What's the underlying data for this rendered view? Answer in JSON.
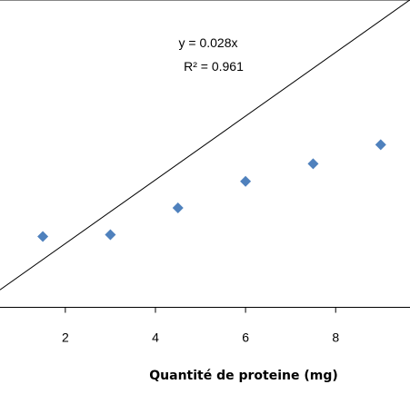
{
  "chart_data": {
    "type": "scatter",
    "title": "",
    "xlabel": "Quantité de proteine (mg)",
    "ylabel": "",
    "x_ticks": [
      "2",
      "4",
      "6",
      "8"
    ],
    "x_tick_values": [
      2,
      4,
      6,
      8
    ],
    "xlim": [
      0.55,
      9.65
    ],
    "ylim": [
      0.0,
      0.27
    ],
    "points": [
      {
        "x": 1.5,
        "y": 0.0622
      },
      {
        "x": 3.0,
        "y": 0.0638
      },
      {
        "x": 4.5,
        "y": 0.0873
      },
      {
        "x": 6.0,
        "y": 0.1107
      },
      {
        "x": 7.5,
        "y": 0.1261
      },
      {
        "x": 9.0,
        "y": 0.1429
      }
    ],
    "trendline": {
      "slope": 0.028,
      "intercept": 0,
      "equation_label": "y = 0.028x",
      "r2_label": "R² = 0.961"
    },
    "colors": {
      "marker": "#4F81BD",
      "trendline": "#000000",
      "axis": "#000000",
      "frame": "#878787"
    },
    "grid": false,
    "legend": "none"
  }
}
